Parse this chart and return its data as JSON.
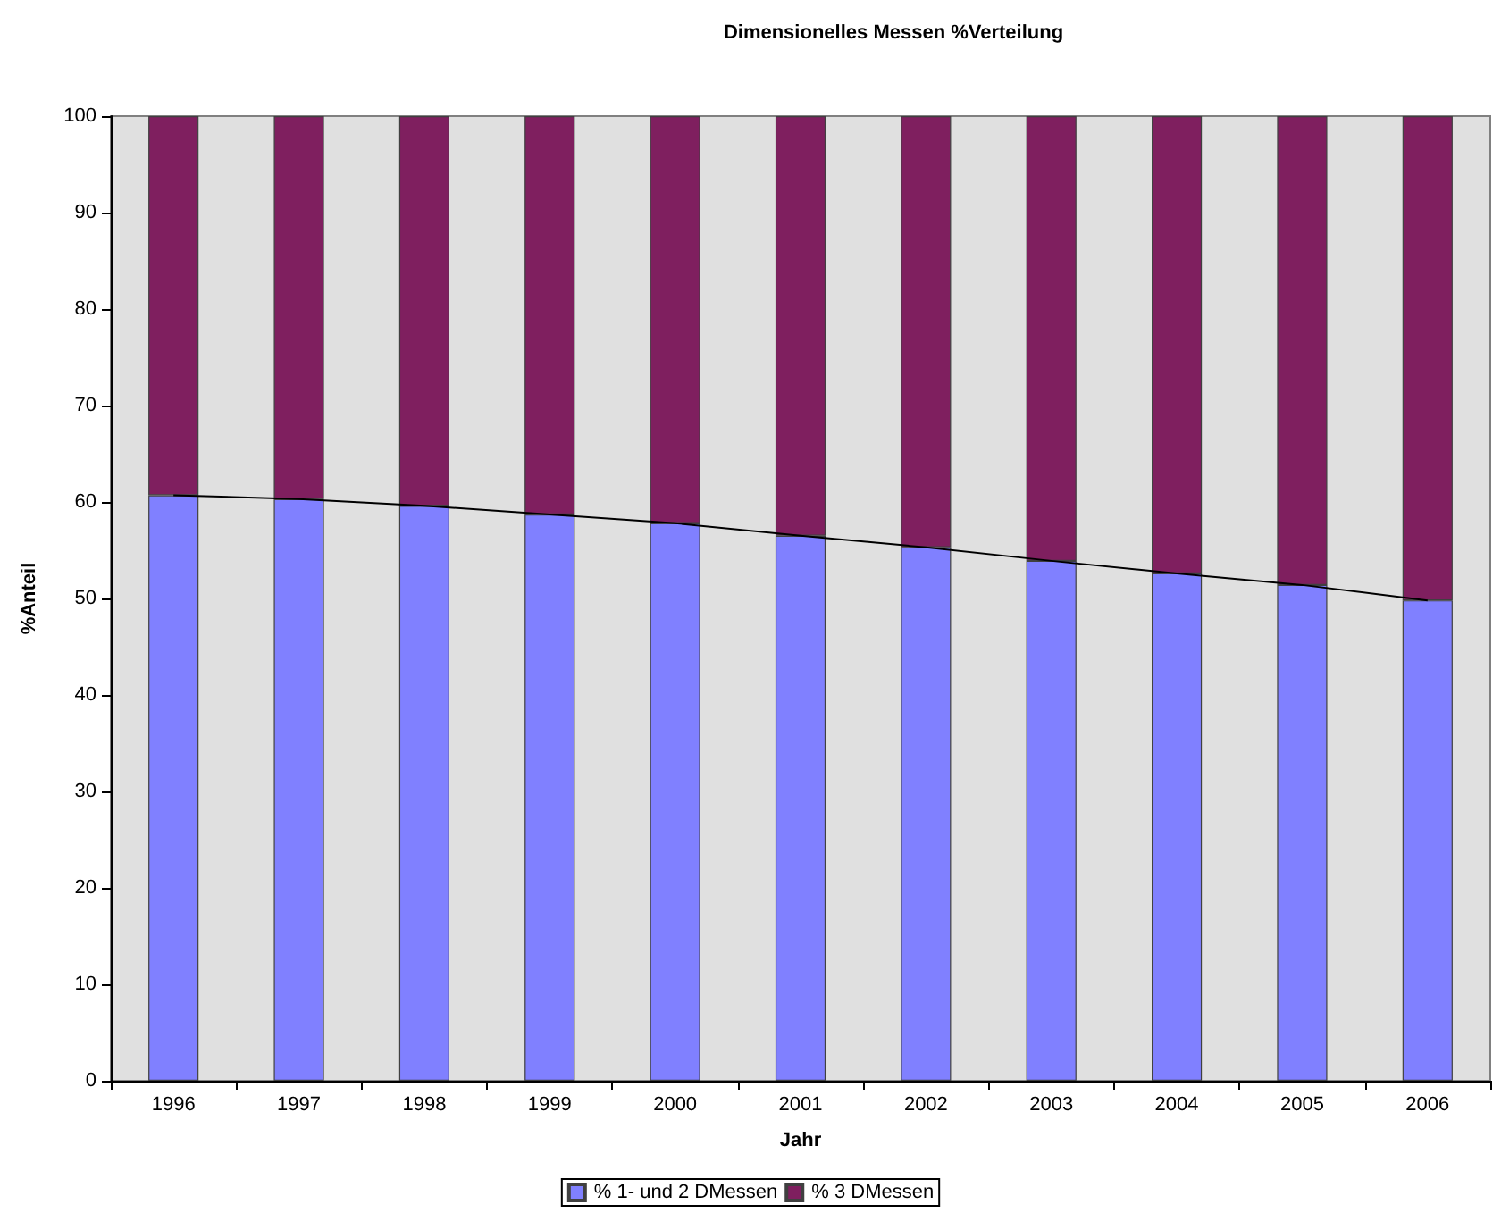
{
  "chart_data": {
    "type": "bar",
    "stacked": true,
    "title": "Dimensionelles Messen %Verteilung",
    "xlabel": "Jahr",
    "ylabel": "%Anteil",
    "categories": [
      "1996",
      "1997",
      "1998",
      "1999",
      "2000",
      "2001",
      "2002",
      "2003",
      "2004",
      "2005",
      "2006"
    ],
    "series": [
      {
        "name": "% 1- und 2 DMessen",
        "color": "#8080ff",
        "values": [
          60.7,
          60.3,
          59.6,
          58.7,
          57.8,
          56.5,
          55.3,
          53.9,
          52.6,
          51.4,
          49.8
        ]
      },
      {
        "name": "% 3 DMessen",
        "color": "#7f1f5f",
        "values": [
          39.3,
          39.7,
          40.4,
          41.3,
          42.2,
          43.5,
          44.7,
          46.1,
          47.4,
          48.6,
          50.2
        ]
      },
      {
        "type": "line",
        "color": "#000000",
        "marker": "none",
        "values": [
          60.7,
          60.3,
          59.6,
          58.7,
          57.8,
          56.5,
          55.3,
          53.9,
          52.6,
          51.4,
          49.8
        ]
      }
    ],
    "ylim": [
      0,
      100
    ],
    "yticks": [
      0,
      10,
      20,
      30,
      40,
      50,
      60,
      70,
      80,
      90,
      100
    ],
    "grid": false,
    "legend": "bottom"
  }
}
